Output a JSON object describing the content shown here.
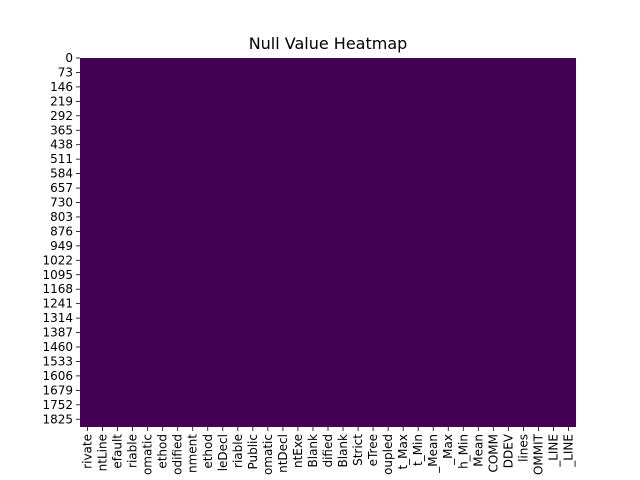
{
  "chart_data": {
    "type": "heatmap",
    "title": "Null Value Heatmap",
    "xlabel": "",
    "ylabel": "",
    "y_ticks": [
      "0",
      "73",
      "146",
      "219",
      "292",
      "365",
      "438",
      "511",
      "584",
      "657",
      "730",
      "803",
      "876",
      "949",
      "1022",
      "1095",
      "1168",
      "1241",
      "1314",
      "1387",
      "1460",
      "1533",
      "1606",
      "1679",
      "1752",
      "1825"
    ],
    "x_ticks": [
      "rivate",
      "ntLine",
      "efault",
      "riable",
      "omatic",
      "ethod",
      "odified",
      "nment",
      "ethod",
      "leDecl",
      "riable",
      "Public",
      "omatic",
      "ntDecl",
      "ntExe",
      "Blank",
      "dified",
      "Blank",
      "Strict",
      "eTree",
      "oupled",
      "t_Max",
      "t_Min",
      "_Mean",
      "_Max",
      "h_Min",
      "Mean",
      "COMM",
      "DDEV",
      "lines",
      "OMMIT",
      "_LINE",
      "_LINE"
    ],
    "values": "all 0 (no null values)",
    "fill_color": "#440154",
    "colormap": "viridis",
    "grid": false,
    "colorbar": false
  }
}
